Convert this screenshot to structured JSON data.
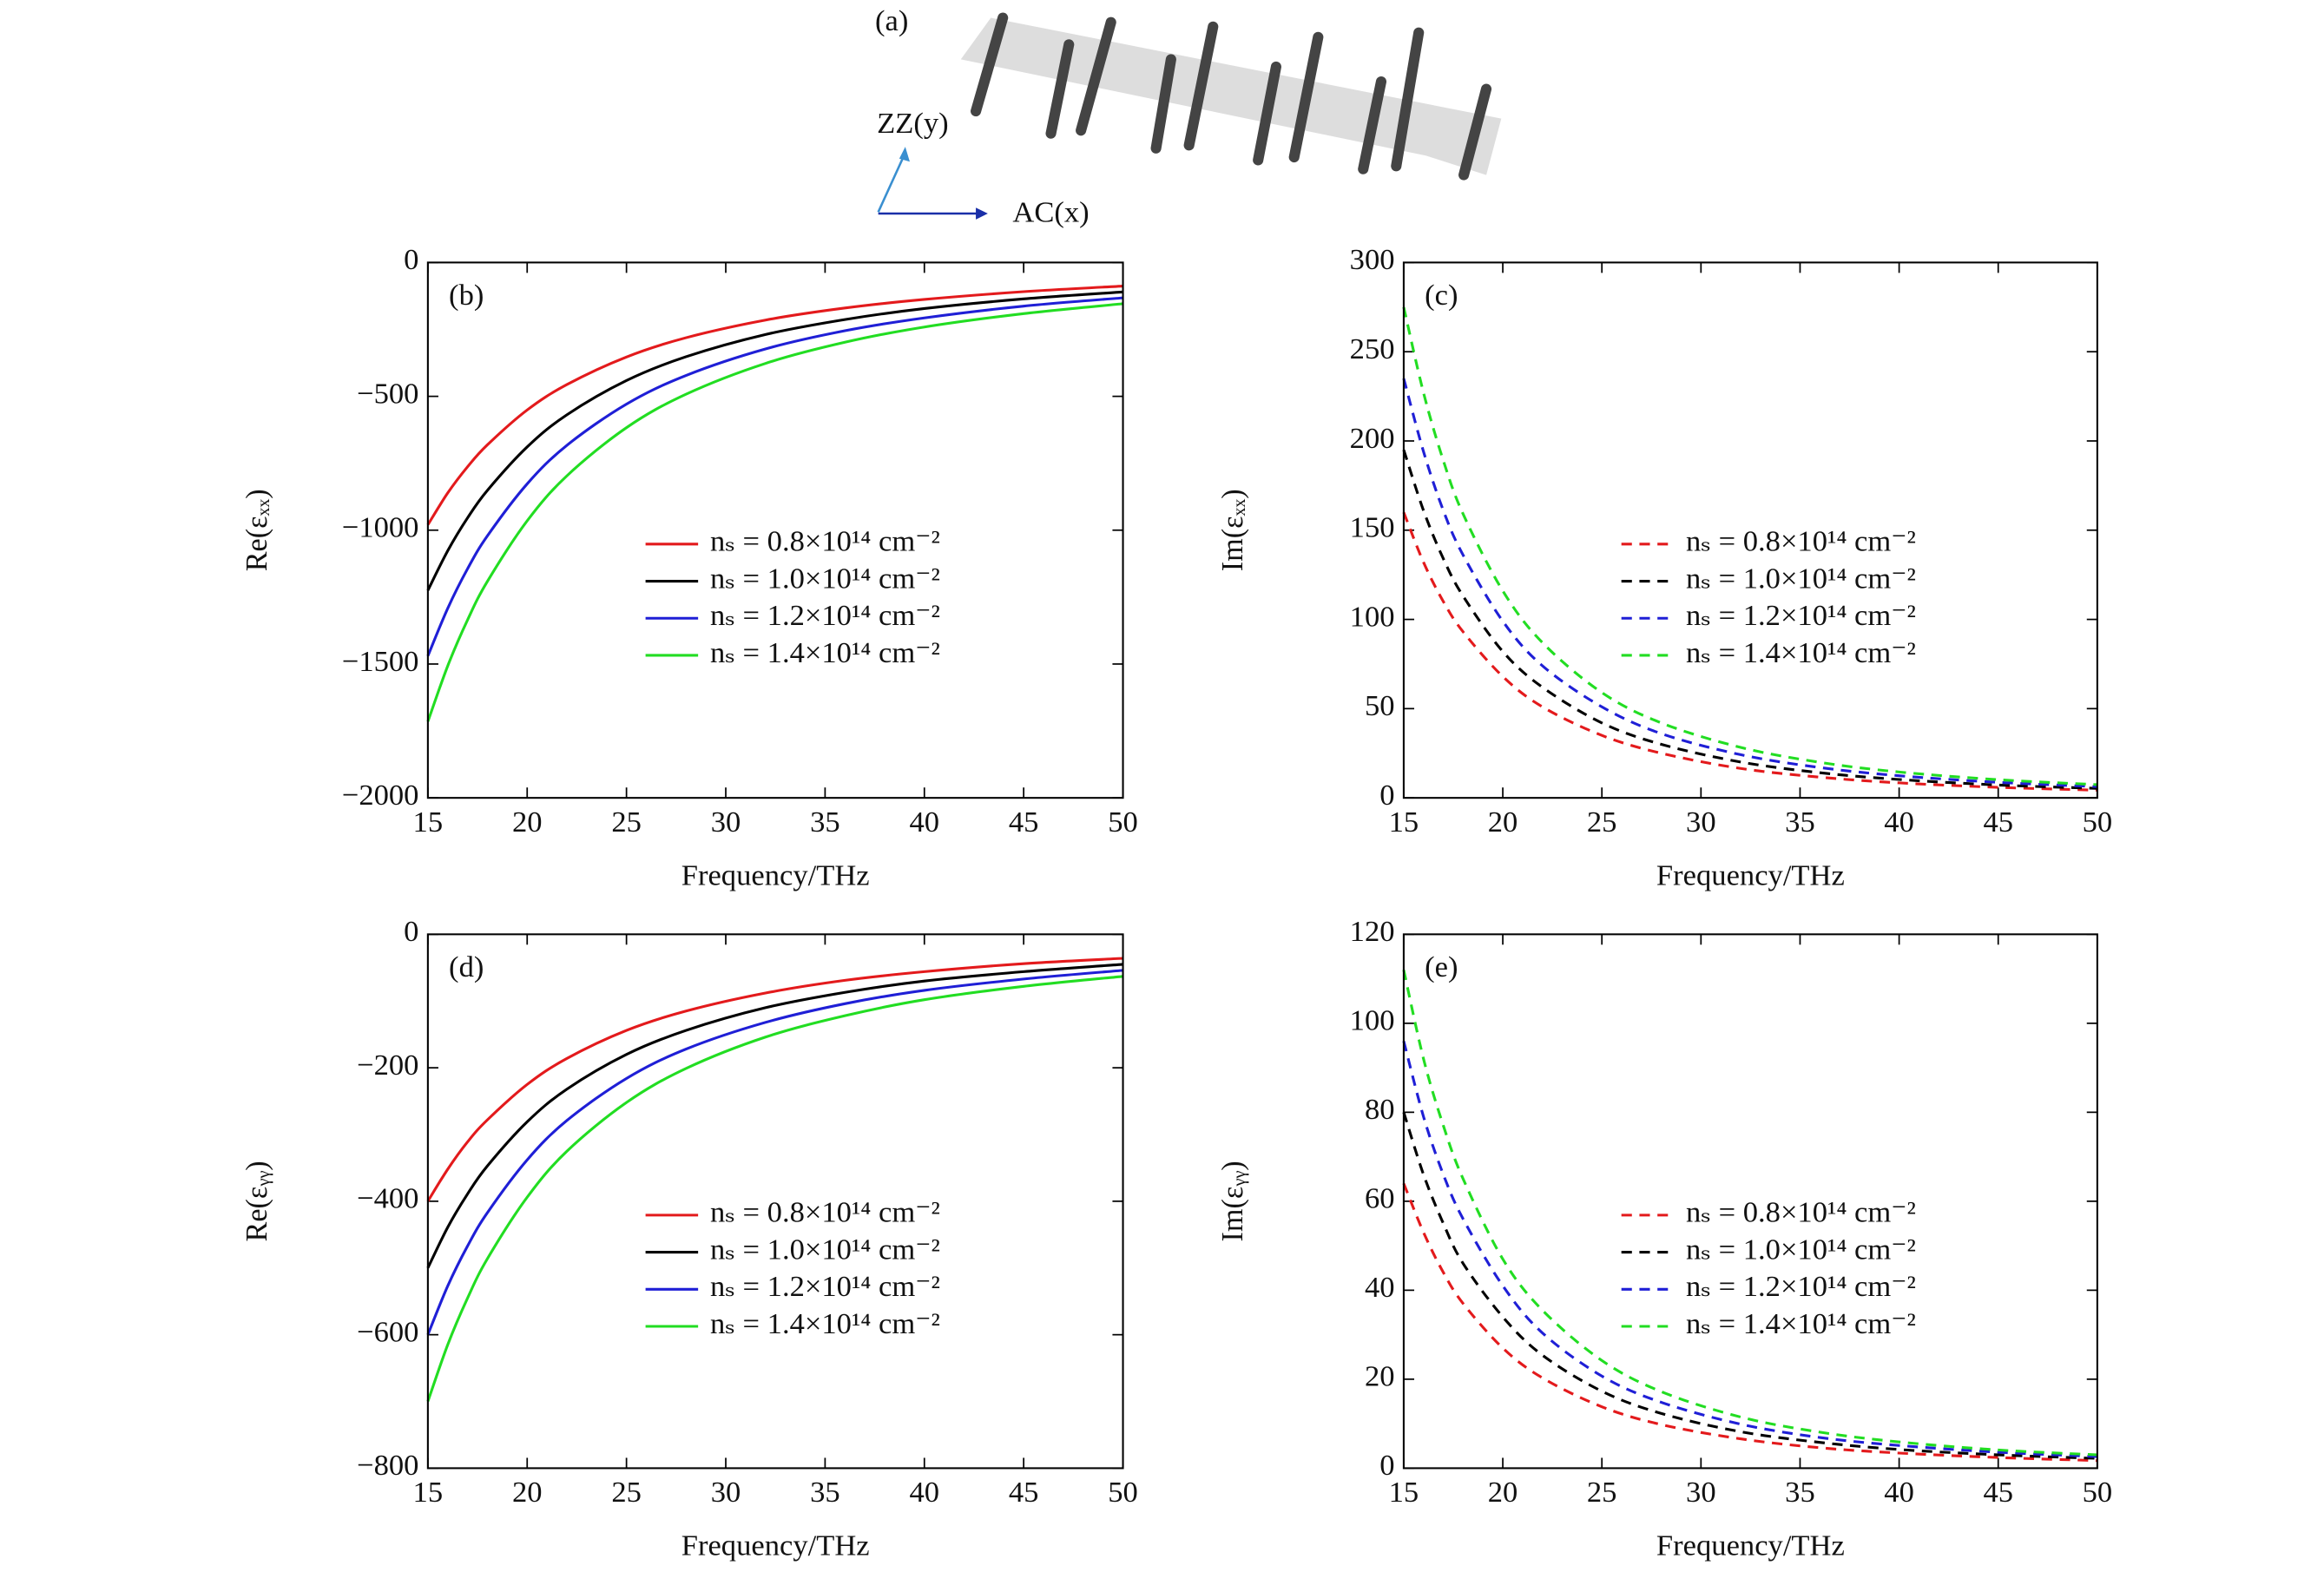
{
  "panel_a": {
    "label": "(a)",
    "axis_y": "ZZ(y)",
    "axis_x": "AC(x)"
  },
  "chart_data": [
    {
      "type": "line",
      "panel_label": "(b)",
      "xlabel": "Frequency/THz",
      "ylabel": "Re(εₓₓ)",
      "dashed": false,
      "legend": "right",
      "x": [
        15,
        16,
        17,
        18,
        20,
        22,
        25,
        28,
        32,
        36,
        40,
        45,
        50
      ],
      "xlim": [
        15,
        50
      ],
      "xticks": [
        15,
        20,
        25,
        30,
        35,
        40,
        45,
        50
      ],
      "ylim": [
        -2000,
        0
      ],
      "yticks": [
        {
          "value": -2000,
          "label": "−2000"
        },
        {
          "value": -1500,
          "label": "−1500"
        },
        {
          "value": -1000,
          "label": "−1000"
        },
        {
          "value": -500,
          "label": "−500"
        },
        0
      ],
      "series": [
        {
          "name": "nₛ = 0.8×10¹⁴ cm⁻²",
          "color": "#e31a1c",
          "values": [
            -980,
            -861,
            -763,
            -681,
            -551,
            -456,
            -353,
            -281,
            -215,
            -170,
            -138,
            -109,
            -88
          ]
        },
        {
          "name": "nₛ = 1.0×10¹⁴ cm⁻²",
          "color": "#000000",
          "values": [
            -1225,
            -1077,
            -954,
            -851,
            -689,
            -569,
            -441,
            -352,
            -269,
            -213,
            -172,
            -136,
            -110
          ]
        },
        {
          "name": "nₛ = 1.2×10¹⁴ cm⁻²",
          "color": "#1f1fd6",
          "values": [
            -1470,
            -1292,
            -1144,
            -1021,
            -827,
            -683,
            -529,
            -422,
            -323,
            -255,
            -207,
            -163,
            -132
          ]
        },
        {
          "name": "nₛ = 1.4×10¹⁴ cm⁻²",
          "color": "#22dd22",
          "values": [
            -1715,
            -1507,
            -1335,
            -1191,
            -965,
            -797,
            -617,
            -492,
            -377,
            -298,
            -241,
            -191,
            -154
          ]
        }
      ]
    },
    {
      "type": "line",
      "panel_label": "(c)",
      "xlabel": "Frequency/THz",
      "ylabel": "Im(εₓₓ)",
      "dashed": true,
      "legend": "right",
      "x": [
        15,
        16,
        17,
        18,
        20,
        22,
        25,
        28,
        32,
        36,
        40,
        45,
        50
      ],
      "xlim": [
        15,
        50
      ],
      "xticks": [
        15,
        20,
        25,
        30,
        35,
        40,
        45,
        50
      ],
      "ylim": [
        0,
        300
      ],
      "yticks": [
        0,
        50,
        100,
        150,
        200,
        250,
        300
      ],
      "series": [
        {
          "name": "nₛ = 0.8×10¹⁴ cm⁻²",
          "color": "#e31a1c",
          "values": [
            160,
            132,
            110,
            93,
            68,
            51,
            35,
            25,
            16.5,
            11.6,
            8.4,
            5.9,
            4.3
          ]
        },
        {
          "name": "nₛ = 1.0×10¹⁴ cm⁻²",
          "color": "#000000",
          "values": [
            195,
            161,
            134,
            113,
            82,
            62,
            42,
            30,
            20.1,
            14.1,
            10.3,
            7.2,
            5.3
          ]
        },
        {
          "name": "nₛ = 1.2×10¹⁴ cm⁻²",
          "color": "#1f1fd6",
          "values": [
            235,
            194,
            161,
            136,
            99,
            74,
            51,
            36,
            24.2,
            17.0,
            12.4,
            8.7,
            6.3
          ]
        },
        {
          "name": "nₛ = 1.4×10¹⁴ cm⁻²",
          "color": "#22dd22",
          "values": [
            275,
            227,
            189,
            159,
            116,
            87,
            59,
            42,
            28.3,
            19.9,
            14.5,
            10.2,
            7.4
          ]
        }
      ]
    },
    {
      "type": "line",
      "panel_label": "(d)",
      "xlabel": "Frequency/THz",
      "ylabel": "Re(εᵧᵧ)",
      "dashed": false,
      "legend": "right",
      "x": [
        15,
        16,
        17,
        18,
        20,
        22,
        25,
        28,
        32,
        36,
        40,
        45,
        50
      ],
      "xlim": [
        15,
        50
      ],
      "xticks": [
        15,
        20,
        25,
        30,
        35,
        40,
        45,
        50
      ],
      "ylim": [
        -800,
        0
      ],
      "yticks": [
        {
          "value": -800,
          "label": "−800"
        },
        {
          "value": -600,
          "label": "−600"
        },
        {
          "value": -400,
          "label": "−400"
        },
        {
          "value": -200,
          "label": "−200"
        },
        0
      ],
      "series": [
        {
          "name": "nₛ = 0.8×10¹⁴ cm⁻²",
          "color": "#e31a1c",
          "values": [
            -400,
            -352,
            -311,
            -278,
            -225,
            -186,
            -144,
            -115,
            -88,
            -69,
            -56,
            -44,
            -36
          ]
        },
        {
          "name": "nₛ = 1.0×10¹⁴ cm⁻²",
          "color": "#000000",
          "values": [
            -500,
            -439,
            -389,
            -347,
            -281,
            -232,
            -180,
            -144,
            -110,
            -87,
            -70,
            -56,
            -45
          ]
        },
        {
          "name": "nₛ = 1.2×10¹⁴ cm⁻²",
          "color": "#1f1fd6",
          "values": [
            -600,
            -527,
            -467,
            -417,
            -338,
            -279,
            -216,
            -172,
            -132,
            -104,
            -84,
            -67,
            -54
          ]
        },
        {
          "name": "nₛ = 1.4×10¹⁴ cm⁻²",
          "color": "#22dd22",
          "values": [
            -700,
            -615,
            -545,
            -486,
            -394,
            -325,
            -252,
            -201,
            -154,
            -122,
            -98,
            -78,
            -63
          ]
        }
      ]
    },
    {
      "type": "line",
      "panel_label": "(e)",
      "xlabel": "Frequency/THz",
      "ylabel": "Im(εᵧᵧ)",
      "dashed": true,
      "legend": "right",
      "x": [
        15,
        16,
        17,
        18,
        20,
        22,
        25,
        28,
        32,
        36,
        40,
        45,
        50
      ],
      "xlim": [
        15,
        50
      ],
      "xticks": [
        15,
        20,
        25,
        30,
        35,
        40,
        45,
        50
      ],
      "ylim": [
        0,
        120
      ],
      "yticks": [
        0,
        20,
        40,
        60,
        80,
        100,
        120
      ],
      "series": [
        {
          "name": "nₛ = 0.8×10¹⁴ cm⁻²",
          "color": "#e31a1c",
          "values": [
            64,
            53,
            44,
            37,
            27,
            20.3,
            13.8,
            9.8,
            6.6,
            4.6,
            3.4,
            2.4,
            1.7
          ]
        },
        {
          "name": "nₛ = 1.0×10¹⁴ cm⁻²",
          "color": "#000000",
          "values": [
            80,
            66,
            55,
            46,
            34,
            25.4,
            17.3,
            12.3,
            8.2,
            5.8,
            4.2,
            3.0,
            2.2
          ]
        },
        {
          "name": "nₛ = 1.2×10¹⁴ cm⁻²",
          "color": "#1f1fd6",
          "values": [
            96,
            79,
            66,
            56,
            41,
            30.4,
            20.7,
            14.8,
            9.9,
            6.9,
            5.1,
            3.6,
            2.6
          ]
        },
        {
          "name": "nₛ = 1.4×10¹⁴ cm⁻²",
          "color": "#22dd22",
          "values": [
            112,
            92,
            77,
            65,
            47,
            35.5,
            24.2,
            17.2,
            11.5,
            8.1,
            5.9,
            4.1,
            3.0
          ]
        }
      ]
    }
  ]
}
